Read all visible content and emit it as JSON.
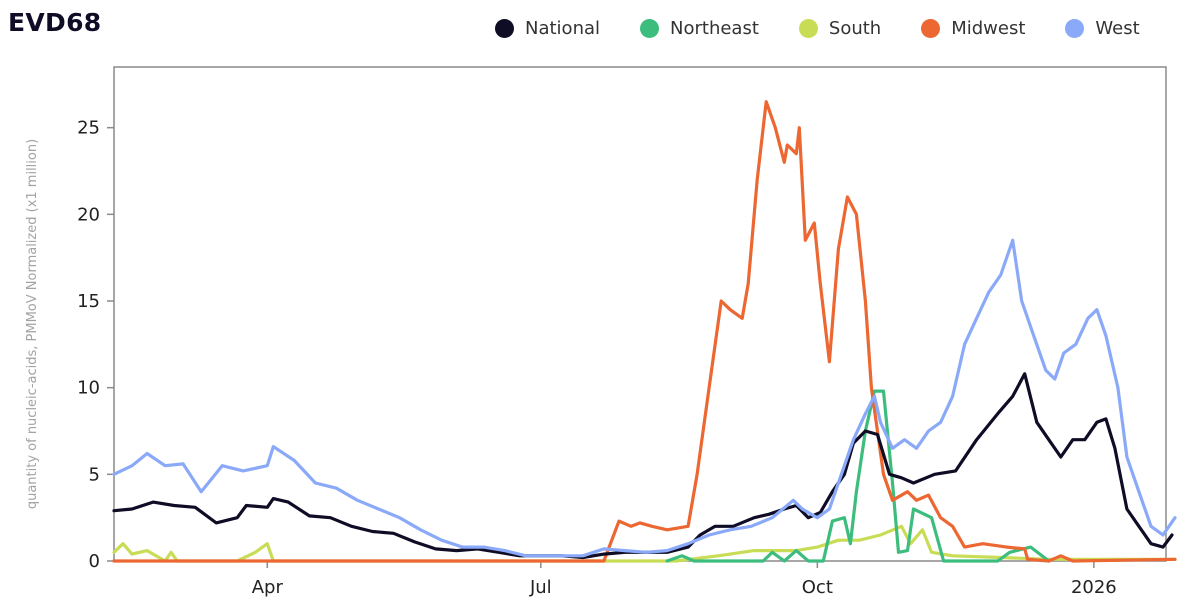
{
  "chart_data": {
    "type": "line",
    "title": "EVD68",
    "ylabel": "quantity of nucleic-acids, PMMoV Normalized (x1 million)",
    "xlabel": "",
    "ylim": [
      0,
      28.5
    ],
    "x_range": [
      "2025-02-09",
      "2026-01-25"
    ],
    "yticks": [
      0,
      5,
      10,
      15,
      20,
      25
    ],
    "xticks": [
      {
        "date": "2025-04-01",
        "label": "Apr"
      },
      {
        "date": "2025-07-01",
        "label": "Jul"
      },
      {
        "date": "2025-10-01",
        "label": "Oct"
      },
      {
        "date": "2026-01-01",
        "label": "2026"
      }
    ],
    "legend_position": "top-right",
    "grid": false,
    "series": [
      {
        "name": "National",
        "color": "#0f0c26",
        "points": [
          [
            "2025-02-09",
            2.9
          ],
          [
            "2025-02-15",
            3.0
          ],
          [
            "2025-02-22",
            3.4
          ],
          [
            "2025-03-01",
            3.2
          ],
          [
            "2025-03-08",
            3.1
          ],
          [
            "2025-03-15",
            2.2
          ],
          [
            "2025-03-22",
            2.5
          ],
          [
            "2025-03-25",
            3.2
          ],
          [
            "2025-04-01",
            3.1
          ],
          [
            "2025-04-03",
            3.6
          ],
          [
            "2025-04-08",
            3.4
          ],
          [
            "2025-04-15",
            2.6
          ],
          [
            "2025-04-22",
            2.5
          ],
          [
            "2025-04-29",
            2.0
          ],
          [
            "2025-05-06",
            1.7
          ],
          [
            "2025-05-13",
            1.6
          ],
          [
            "2025-05-20",
            1.1
          ],
          [
            "2025-05-27",
            0.7
          ],
          [
            "2025-06-03",
            0.6
          ],
          [
            "2025-06-10",
            0.7
          ],
          [
            "2025-06-17",
            0.5
          ],
          [
            "2025-06-24",
            0.3
          ],
          [
            "2025-07-01",
            0.3
          ],
          [
            "2025-07-08",
            0.3
          ],
          [
            "2025-07-15",
            0.2
          ],
          [
            "2025-07-22",
            0.4
          ],
          [
            "2025-07-29",
            0.5
          ],
          [
            "2025-08-05",
            0.5
          ],
          [
            "2025-08-12",
            0.5
          ],
          [
            "2025-08-19",
            0.8
          ],
          [
            "2025-08-23",
            1.5
          ],
          [
            "2025-08-28",
            2.0
          ],
          [
            "2025-09-03",
            2.0
          ],
          [
            "2025-09-10",
            2.5
          ],
          [
            "2025-09-15",
            2.7
          ],
          [
            "2025-09-20",
            3.0
          ],
          [
            "2025-09-24",
            3.2
          ],
          [
            "2025-09-28",
            2.5
          ],
          [
            "2025-10-02",
            2.8
          ],
          [
            "2025-10-06",
            4.0
          ],
          [
            "2025-10-10",
            5.0
          ],
          [
            "2025-10-13",
            6.8
          ],
          [
            "2025-10-17",
            7.5
          ],
          [
            "2025-10-21",
            7.3
          ],
          [
            "2025-10-25",
            5.0
          ],
          [
            "2025-10-29",
            4.8
          ],
          [
            "2025-11-02",
            4.5
          ],
          [
            "2025-11-09",
            5.0
          ],
          [
            "2025-11-16",
            5.2
          ],
          [
            "2025-11-23",
            7.0
          ],
          [
            "2025-11-30",
            8.5
          ],
          [
            "2025-12-05",
            9.5
          ],
          [
            "2025-12-09",
            10.8
          ],
          [
            "2025-12-13",
            8.0
          ],
          [
            "2025-12-17",
            7.0
          ],
          [
            "2025-12-21",
            6.0
          ],
          [
            "2025-12-25",
            7.0
          ],
          [
            "2025-12-29",
            7.0
          ],
          [
            "2026-01-02",
            8.0
          ],
          [
            "2026-01-05",
            8.2
          ],
          [
            "2026-01-08",
            6.5
          ],
          [
            "2026-01-12",
            3.0
          ],
          [
            "2026-01-16",
            2.0
          ],
          [
            "2026-01-20",
            1.0
          ],
          [
            "2026-01-24",
            0.8
          ],
          [
            "2026-01-27",
            1.5
          ]
        ]
      },
      {
        "name": "Northeast",
        "color": "#3dbd7d",
        "points": [
          [
            "2025-08-12",
            0.0
          ],
          [
            "2025-08-17",
            0.3
          ],
          [
            "2025-08-21",
            0.0
          ],
          [
            "2025-09-13",
            0.0
          ],
          [
            "2025-09-16",
            0.5
          ],
          [
            "2025-09-20",
            0.0
          ],
          [
            "2025-09-24",
            0.6
          ],
          [
            "2025-09-28",
            0.0
          ],
          [
            "2025-10-03",
            0.0
          ],
          [
            "2025-10-06",
            2.3
          ],
          [
            "2025-10-10",
            2.5
          ],
          [
            "2025-10-12",
            1.0
          ],
          [
            "2025-10-14",
            4.0
          ],
          [
            "2025-10-17",
            7.5
          ],
          [
            "2025-10-20",
            9.8
          ],
          [
            "2025-10-23",
            9.8
          ],
          [
            "2025-10-26",
            4.5
          ],
          [
            "2025-10-28",
            0.5
          ],
          [
            "2025-10-31",
            0.6
          ],
          [
            "2025-11-02",
            3.0
          ],
          [
            "2025-11-08",
            2.5
          ],
          [
            "2025-11-12",
            0.0
          ],
          [
            "2025-11-30",
            0.0
          ],
          [
            "2025-12-04",
            0.5
          ],
          [
            "2025-12-11",
            0.8
          ],
          [
            "2025-12-17",
            0.0
          ]
        ]
      },
      {
        "name": "South",
        "color": "#c9dc55",
        "points": [
          [
            "2025-02-09",
            0.5
          ],
          [
            "2025-02-12",
            1.0
          ],
          [
            "2025-02-15",
            0.4
          ],
          [
            "2025-02-20",
            0.6
          ],
          [
            "2025-02-26",
            0.0
          ],
          [
            "2025-02-28",
            0.5
          ],
          [
            "2025-03-02",
            0.0
          ],
          [
            "2025-03-22",
            0.0
          ],
          [
            "2025-03-28",
            0.5
          ],
          [
            "2025-04-01",
            1.0
          ],
          [
            "2025-04-03",
            0.0
          ],
          [
            "2025-08-15",
            0.0
          ],
          [
            "2025-08-29",
            0.3
          ],
          [
            "2025-09-10",
            0.6
          ],
          [
            "2025-09-24",
            0.6
          ],
          [
            "2025-10-01",
            0.8
          ],
          [
            "2025-10-08",
            1.2
          ],
          [
            "2025-10-15",
            1.2
          ],
          [
            "2025-10-22",
            1.5
          ],
          [
            "2025-10-29",
            2.0
          ],
          [
            "2025-11-01",
            1.0
          ],
          [
            "2025-11-05",
            1.8
          ],
          [
            "2025-11-08",
            0.5
          ],
          [
            "2025-11-15",
            0.3
          ],
          [
            "2025-12-01",
            0.2
          ],
          [
            "2025-12-17",
            0.1
          ],
          [
            "2026-01-01",
            0.1
          ],
          [
            "2026-01-28",
            0.1
          ]
        ]
      },
      {
        "name": "Midwest",
        "color": "#ec6731",
        "points": [
          [
            "2025-02-09",
            0.0
          ],
          [
            "2025-07-22",
            0.0
          ],
          [
            "2025-07-27",
            2.3
          ],
          [
            "2025-07-31",
            2.0
          ],
          [
            "2025-08-03",
            2.2
          ],
          [
            "2025-08-07",
            2.0
          ],
          [
            "2025-08-12",
            1.8
          ],
          [
            "2025-08-19",
            2.0
          ],
          [
            "2025-08-22",
            5.0
          ],
          [
            "2025-08-26",
            10.0
          ],
          [
            "2025-08-30",
            15.0
          ],
          [
            "2025-09-02",
            14.5
          ],
          [
            "2025-09-06",
            14.0
          ],
          [
            "2025-09-08",
            16.0
          ],
          [
            "2025-09-11",
            22.0
          ],
          [
            "2025-09-14",
            26.5
          ],
          [
            "2025-09-17",
            25.0
          ],
          [
            "2025-09-20",
            23.0
          ],
          [
            "2025-09-21",
            24.0
          ],
          [
            "2025-09-24",
            23.5
          ],
          [
            "2025-09-25",
            25.0
          ],
          [
            "2025-09-27",
            18.5
          ],
          [
            "2025-09-30",
            19.5
          ],
          [
            "2025-10-02",
            16.0
          ],
          [
            "2025-10-05",
            11.5
          ],
          [
            "2025-10-08",
            18.0
          ],
          [
            "2025-10-11",
            21.0
          ],
          [
            "2025-10-14",
            20.0
          ],
          [
            "2025-10-17",
            15.0
          ],
          [
            "2025-10-19",
            10.0
          ],
          [
            "2025-10-23",
            5.0
          ],
          [
            "2025-10-26",
            3.5
          ],
          [
            "2025-10-31",
            4.0
          ],
          [
            "2025-11-03",
            3.5
          ],
          [
            "2025-11-07",
            3.8
          ],
          [
            "2025-11-11",
            2.5
          ],
          [
            "2025-11-15",
            2.0
          ],
          [
            "2025-11-19",
            0.8
          ],
          [
            "2025-11-25",
            1.0
          ],
          [
            "2025-12-03",
            0.8
          ],
          [
            "2025-12-09",
            0.7
          ],
          [
            "2025-12-10",
            0.1
          ],
          [
            "2025-12-17",
            0.0
          ],
          [
            "2025-12-21",
            0.3
          ],
          [
            "2025-12-25",
            0.0
          ],
          [
            "2026-01-28",
            0.1
          ]
        ]
      },
      {
        "name": "West",
        "color": "#8aa9f8",
        "points": [
          [
            "2025-02-09",
            5.0
          ],
          [
            "2025-02-15",
            5.5
          ],
          [
            "2025-02-20",
            6.2
          ],
          [
            "2025-02-26",
            5.5
          ],
          [
            "2025-03-04",
            5.6
          ],
          [
            "2025-03-10",
            4.0
          ],
          [
            "2025-03-17",
            5.5
          ],
          [
            "2025-03-24",
            5.2
          ],
          [
            "2025-04-01",
            5.5
          ],
          [
            "2025-04-03",
            6.6
          ],
          [
            "2025-04-10",
            5.8
          ],
          [
            "2025-04-17",
            4.5
          ],
          [
            "2025-04-24",
            4.2
          ],
          [
            "2025-05-01",
            3.5
          ],
          [
            "2025-05-08",
            3.0
          ],
          [
            "2025-05-15",
            2.5
          ],
          [
            "2025-05-22",
            1.8
          ],
          [
            "2025-05-29",
            1.2
          ],
          [
            "2025-06-05",
            0.8
          ],
          [
            "2025-06-12",
            0.8
          ],
          [
            "2025-06-19",
            0.6
          ],
          [
            "2025-06-26",
            0.3
          ],
          [
            "2025-07-01",
            0.3
          ],
          [
            "2025-07-08",
            0.3
          ],
          [
            "2025-07-15",
            0.3
          ],
          [
            "2025-07-22",
            0.7
          ],
          [
            "2025-07-29",
            0.6
          ],
          [
            "2025-08-05",
            0.5
          ],
          [
            "2025-08-12",
            0.6
          ],
          [
            "2025-08-19",
            1.0
          ],
          [
            "2025-08-26",
            1.5
          ],
          [
            "2025-09-02",
            1.8
          ],
          [
            "2025-09-09",
            2.0
          ],
          [
            "2025-09-16",
            2.5
          ],
          [
            "2025-09-23",
            3.5
          ],
          [
            "2025-09-26",
            3.0
          ],
          [
            "2025-10-01",
            2.5
          ],
          [
            "2025-10-05",
            3.0
          ],
          [
            "2025-10-09",
            5.0
          ],
          [
            "2025-10-13",
            7.0
          ],
          [
            "2025-10-17",
            8.5
          ],
          [
            "2025-10-20",
            9.5
          ],
          [
            "2025-10-22",
            8.0
          ],
          [
            "2025-10-26",
            6.5
          ],
          [
            "2025-10-30",
            7.0
          ],
          [
            "2025-11-03",
            6.5
          ],
          [
            "2025-11-07",
            7.5
          ],
          [
            "2025-11-11",
            8.0
          ],
          [
            "2025-11-15",
            9.5
          ],
          [
            "2025-11-19",
            12.5
          ],
          [
            "2025-11-23",
            14.0
          ],
          [
            "2025-11-27",
            15.5
          ],
          [
            "2025-12-01",
            16.5
          ],
          [
            "2025-12-05",
            18.5
          ],
          [
            "2025-12-08",
            15.0
          ],
          [
            "2025-12-12",
            13.0
          ],
          [
            "2025-12-16",
            11.0
          ],
          [
            "2025-12-19",
            10.5
          ],
          [
            "2025-12-22",
            12.0
          ],
          [
            "2025-12-26",
            12.5
          ],
          [
            "2025-12-30",
            14.0
          ],
          [
            "2026-01-02",
            14.5
          ],
          [
            "2026-01-05",
            13.0
          ],
          [
            "2026-01-09",
            10.0
          ],
          [
            "2026-01-12",
            6.0
          ],
          [
            "2026-01-16",
            4.0
          ],
          [
            "2026-01-20",
            2.0
          ],
          [
            "2026-01-24",
            1.5
          ],
          [
            "2026-01-28",
            2.5
          ]
        ]
      }
    ]
  }
}
